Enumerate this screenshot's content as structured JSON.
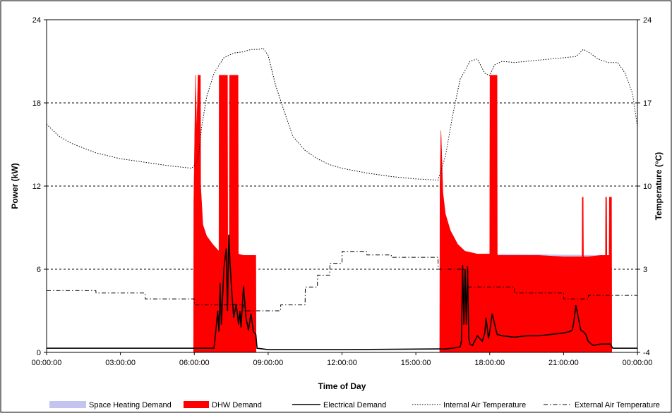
{
  "chart_data": {
    "type": "area",
    "title": "",
    "xlabel": "Time of Day",
    "ylabel": "Power (kW)",
    "y2label": "Temperature (°C)",
    "xlim": [
      0,
      24
    ],
    "ylim": [
      0,
      24
    ],
    "y2lim": [
      -4,
      24
    ],
    "grid": "horizontal dashed",
    "legend_position": "bottom",
    "x_ticks": [
      0,
      3,
      6,
      9,
      12,
      15,
      18,
      21,
      24
    ],
    "x_tick_labels": [
      "00:00:00",
      "03:00:00",
      "06:00:00",
      "09:00:00",
      "12:00:00",
      "15:00:00",
      "18:00:00",
      "21:00:00",
      "00:00:00"
    ],
    "y_ticks": [
      0,
      6,
      12,
      18,
      24
    ],
    "y_tick_labels": [
      "0",
      "6",
      "12",
      "18",
      "24"
    ],
    "y2_ticks": [
      -4,
      3,
      10,
      17,
      24
    ],
    "y2_tick_labels": [
      "-4",
      "3",
      "10",
      "17",
      "24"
    ],
    "colors": {
      "space_heating": "#c4c4f0",
      "dhw": "#ff0000",
      "electrical": "#000000",
      "internal_temp": "#000000",
      "external_temp": "#000000",
      "grid": "#000000"
    },
    "series": [
      {
        "name": "Space Heating Demand",
        "axis": "left",
        "style": "area",
        "x": [
          0,
          5.97,
          5.98,
          6.05,
          6.1,
          6.2,
          6.35,
          6.5,
          6.75,
          7.0,
          7.5,
          8.0,
          8.5,
          8.51,
          15.97,
          15.98,
          16.02,
          16.1,
          16.2,
          16.4,
          16.7,
          17.0,
          17.5,
          22.95,
          22.96,
          24
        ],
        "y": [
          0,
          0,
          11,
          13.3,
          12.5,
          10.5,
          9.2,
          8.4,
          7.8,
          7.3,
          7.1,
          7.0,
          7.0,
          0,
          0,
          12.0,
          16.0,
          11.5,
          10.0,
          8.8,
          7.8,
          7.3,
          7.1,
          7.0,
          0,
          0
        ]
      },
      {
        "name": "DHW Demand",
        "axis": "left",
        "style": "area",
        "x": [
          0,
          5.97,
          5.98,
          6.05,
          6.1,
          6.15,
          6.25,
          6.26,
          6.35,
          6.5,
          6.75,
          7.0,
          7.01,
          7.35,
          7.36,
          7.42,
          7.43,
          7.78,
          7.79,
          8.0,
          8.5,
          8.51,
          15.97,
          15.98,
          16.02,
          16.1,
          16.2,
          16.4,
          16.7,
          17.0,
          17.5,
          18.0,
          18.01,
          18.3,
          18.31,
          19.0,
          20.0,
          21.0,
          21.75,
          21.76,
          21.8,
          21.81,
          22.0,
          22.5,
          22.7,
          22.71,
          22.75,
          22.76,
          22.85,
          22.86,
          22.95,
          22.96,
          24
        ],
        "y": [
          0,
          0,
          11,
          20,
          16,
          20,
          20,
          12,
          9.2,
          8.4,
          7.8,
          7.3,
          20,
          20,
          7.2,
          7.2,
          20,
          20,
          7.1,
          7.0,
          7.0,
          0,
          0,
          12.0,
          16.0,
          11.5,
          10.0,
          8.8,
          7.8,
          7.3,
          7.1,
          7.1,
          20,
          20,
          7.0,
          7.0,
          7.0,
          6.9,
          6.9,
          11.2,
          11.2,
          6.9,
          6.9,
          7.0,
          7.0,
          11.2,
          11.2,
          7.0,
          7.0,
          11.2,
          11.2,
          0,
          0
        ]
      },
      {
        "name": "Electrical Demand",
        "axis": "left",
        "style": "line-solid",
        "x": [
          0,
          5.97,
          6.3,
          6.5,
          6.8,
          6.9,
          6.95,
          7.0,
          7.05,
          7.1,
          7.2,
          7.3,
          7.35,
          7.4,
          7.45,
          7.5,
          7.6,
          7.7,
          7.8,
          7.85,
          7.9,
          8.0,
          8.1,
          8.2,
          8.3,
          8.4,
          8.5,
          8.55,
          9.0,
          12.0,
          15.97,
          16.2,
          16.5,
          16.8,
          16.85,
          16.9,
          16.95,
          17.0,
          17.05,
          17.1,
          17.15,
          17.2,
          17.3,
          17.5,
          17.7,
          17.8,
          17.85,
          17.95,
          18.0,
          18.1,
          18.3,
          18.5,
          19.0,
          19.5,
          20.0,
          20.5,
          21.0,
          21.25,
          21.35,
          21.4,
          21.5,
          21.7,
          21.8,
          21.9,
          22.0,
          22.2,
          22.5,
          22.9,
          23.0,
          23.5,
          24
        ],
        "y": [
          0.3,
          0.3,
          0.3,
          0.3,
          0.3,
          2.0,
          3.0,
          1.5,
          5.0,
          2.0,
          6.0,
          7.5,
          3.0,
          8.5,
          6.5,
          5.0,
          2.5,
          3.5,
          2.0,
          3.0,
          1.8,
          4.8,
          2.5,
          1.6,
          2.8,
          1.5,
          1.3,
          0.3,
          0.2,
          0.2,
          0.25,
          0.25,
          0.3,
          0.4,
          0.8,
          6.3,
          2.0,
          6.0,
          2.0,
          6.2,
          1.0,
          0.6,
          0.5,
          1.2,
          0.8,
          1.4,
          2.5,
          1.0,
          1.5,
          2.8,
          1.3,
          1.2,
          1.1,
          1.2,
          1.2,
          1.3,
          1.4,
          1.5,
          1.6,
          2.0,
          3.4,
          1.6,
          1.5,
          1.3,
          0.8,
          0.5,
          0.6,
          0.6,
          0.3,
          0.3,
          0.3
        ]
      },
      {
        "name": "Internal Air Temperature",
        "axis": "right",
        "style": "line-dotted",
        "x": [
          0,
          0.5,
          1,
          1.5,
          2,
          3,
          4,
          5,
          5.9,
          6.1,
          6.2,
          6.3,
          6.5,
          6.8,
          7.2,
          7.6,
          8,
          8.3,
          8.6,
          8.8,
          9,
          9.3,
          9.7,
          10,
          10.5,
          11,
          11.5,
          12,
          13,
          14,
          15,
          15.9,
          16.2,
          16.5,
          16.8,
          17.2,
          17.5,
          17.8,
          18,
          18.2,
          18.5,
          19,
          20,
          21,
          21.5,
          21.8,
          22,
          22.4,
          22.8,
          23.2,
          23.5,
          23.8,
          24
        ],
        "y": [
          15.2,
          14.2,
          13.6,
          13.2,
          12.8,
          12.3,
          12.0,
          11.7,
          11.5,
          12.0,
          13.0,
          15.0,
          17.5,
          19.5,
          20.8,
          21.2,
          21.3,
          21.5,
          21.5,
          21.6,
          21.0,
          18.5,
          16.0,
          14.2,
          13.0,
          12.3,
          11.8,
          11.5,
          11.1,
          10.8,
          10.6,
          10.5,
          12.5,
          16.0,
          19.0,
          20.5,
          20.7,
          19.5,
          19.3,
          20.2,
          20.5,
          20.4,
          20.6,
          20.8,
          20.9,
          21.5,
          21.3,
          20.7,
          20.4,
          20.4,
          19.5,
          17.8,
          15.0
        ]
      },
      {
        "name": "External Air Temperature",
        "axis": "right",
        "style": "line-dashdot",
        "x": [
          0,
          2,
          2.01,
          4,
          4.01,
          6,
          6.01,
          8,
          8.01,
          9.5,
          9.51,
          10.5,
          10.51,
          11,
          11.01,
          11.5,
          11.51,
          12,
          12.01,
          13,
          13.01,
          14,
          14.01,
          15.9,
          15.91,
          17,
          17.01,
          19,
          19.01,
          21,
          21.01,
          22,
          22.01,
          23.3,
          23.31,
          24
        ],
        "y": [
          1.2,
          1.2,
          1.0,
          1.0,
          0.5,
          0.5,
          0.0,
          0.0,
          -0.5,
          -0.5,
          0.0,
          0.0,
          1.5,
          1.5,
          2.5,
          2.5,
          3.5,
          3.5,
          4.5,
          4.5,
          4.2,
          4.2,
          4.0,
          4.0,
          3.0,
          3.0,
          1.5,
          1.5,
          1.0,
          1.0,
          0.5,
          0.5,
          0.8,
          0.8,
          0.8,
          0.8
        ]
      }
    ],
    "legend": [
      {
        "label": "Space Heating Demand",
        "symbol": "area-lavender"
      },
      {
        "label": "DHW Demand",
        "symbol": "area-red"
      },
      {
        "label": "Electrical Demand",
        "symbol": "line-solid"
      },
      {
        "label": "Internal Air Temperature",
        "symbol": "line-dotted"
      },
      {
        "label": "External Air Temperature",
        "symbol": "line-dashdot"
      }
    ]
  }
}
